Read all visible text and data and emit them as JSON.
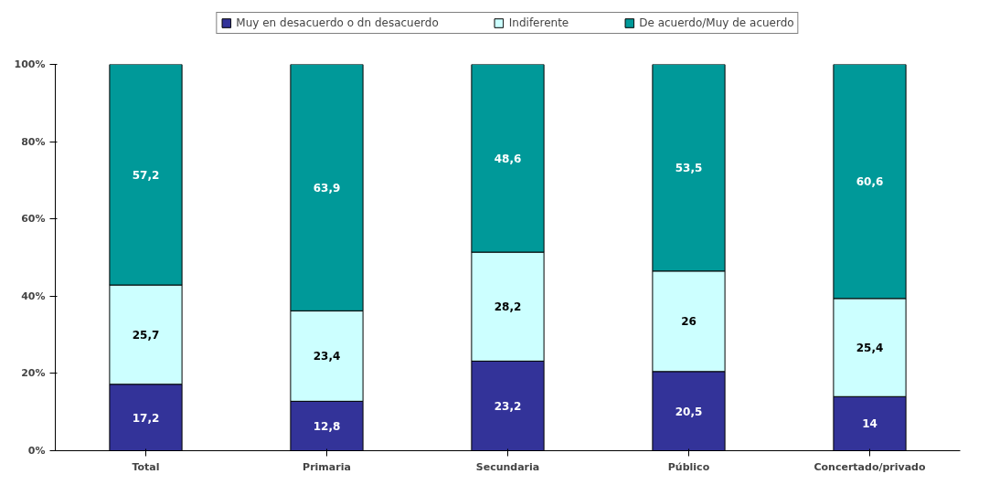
{
  "chart_data": {
    "type": "bar",
    "stacked": true,
    "categories": [
      "Total",
      "Primaria",
      "Secundaria",
      "Público",
      "Concertado/privado"
    ],
    "series": [
      {
        "name": "Muy en desacuerdo o dn desacuerdo",
        "color": "#333399",
        "values": [
          17.2,
          12.8,
          23.2,
          20.5,
          14
        ],
        "value_labels": [
          "17,2",
          "12,8",
          "23,2",
          "20,5",
          "14"
        ]
      },
      {
        "name": "Indiferente",
        "color": "#ccffff",
        "values": [
          25.7,
          23.4,
          28.2,
          26,
          25.4
        ],
        "value_labels": [
          "25,7",
          "23,4",
          "28,2",
          "26",
          "25,4"
        ]
      },
      {
        "name": "De acuerdo/Muy de acuerdo",
        "color": "#009999",
        "values": [
          57.2,
          63.9,
          48.6,
          53.5,
          60.6
        ],
        "value_labels": [
          "57,2",
          "63,9",
          "48,6",
          "53,5",
          "60,6"
        ]
      }
    ],
    "ylim": [
      0,
      100
    ],
    "yticks": [
      {
        "value": 0,
        "label": "0%"
      },
      {
        "value": 20,
        "label": "20%"
      },
      {
        "value": 40,
        "label": "40%"
      },
      {
        "value": 60,
        "label": "60%"
      },
      {
        "value": 80,
        "label": "80%"
      },
      {
        "value": 100,
        "label": "100%"
      }
    ],
    "grid": false,
    "legend": "top"
  }
}
